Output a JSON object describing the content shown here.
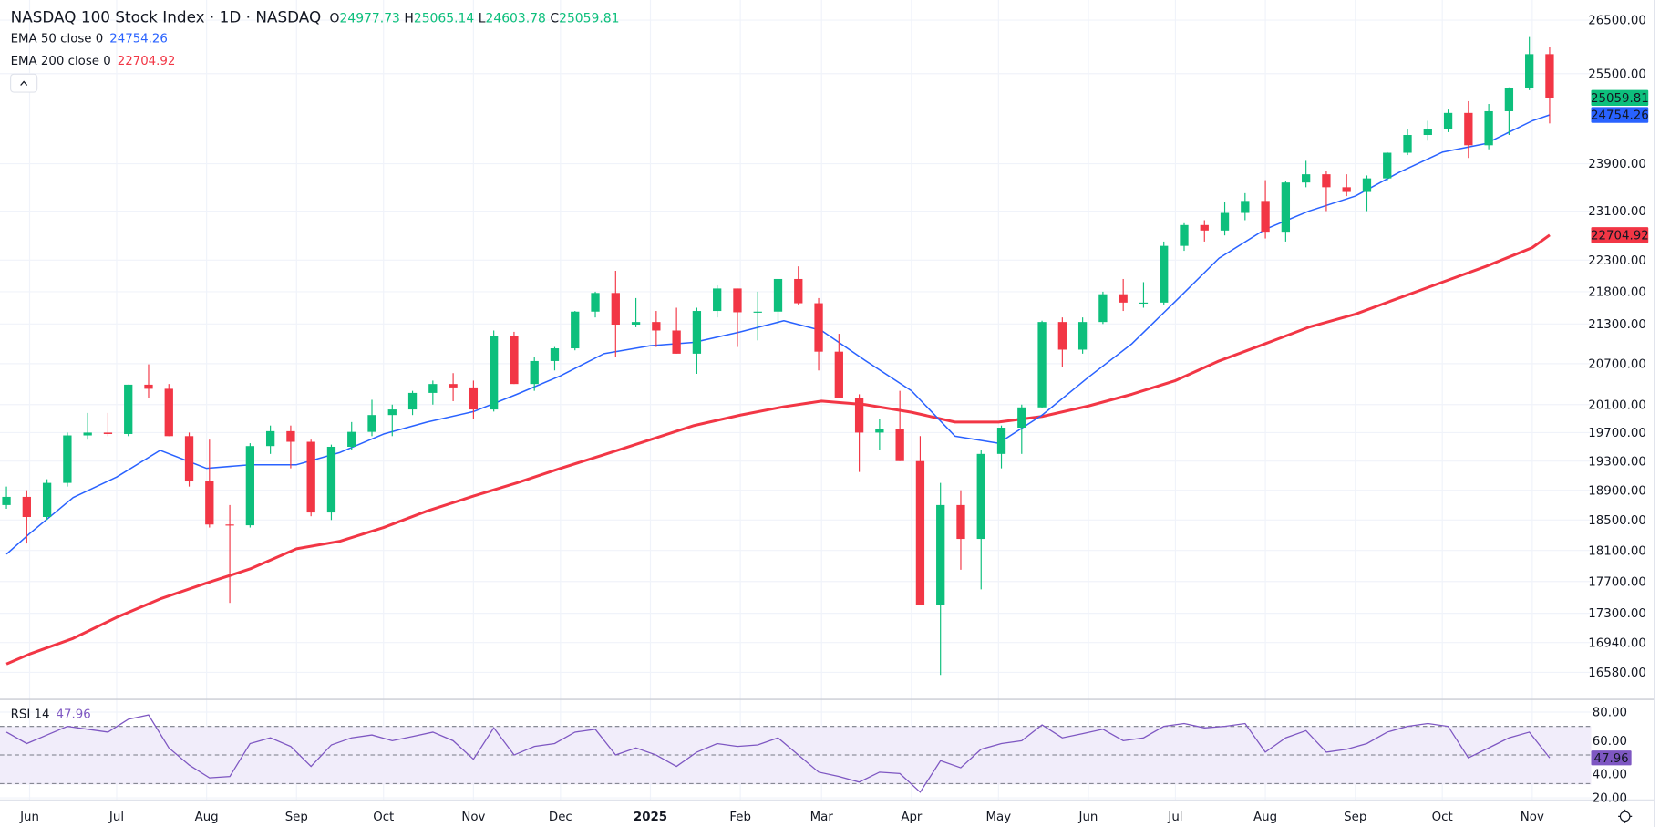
{
  "header": {
    "title": "NASDAQ 100 Stock Index · 1D · NASDAQ",
    "o_label": "O",
    "o_value": "24977.73",
    "h_label": "H",
    "h_value": "25065.14",
    "l_label": "L",
    "l_value": "24603.78",
    "c_label": "C",
    "c_value": "25059.81"
  },
  "legend": {
    "ema50_label": "EMA 50 close 0",
    "ema50_value": "24754.26",
    "ema200_label": "EMA 200 close 0",
    "ema200_value": "22704.92",
    "rsi_label": "RSI 14",
    "rsi_value": "47.96",
    "collapse_icon": "chevron-up-icon"
  },
  "badges": {
    "last_price": "25059.81",
    "ema50": "24754.26",
    "ema200": "22704.92",
    "rsi": "47.96"
  },
  "colors": {
    "up": "#0dbf7c",
    "down": "#f23645",
    "ema50": "#2962ff",
    "ema200": "#f23645",
    "rsi": "#7e57c2",
    "rsi_band": "#f1edfa"
  },
  "settings_icon": "gear-icon",
  "chart_data": {
    "type": "candlestick",
    "price_scale": "log",
    "grid": true,
    "ylim": [
      16450,
      26800
    ],
    "y_ticks": [
      26500,
      25500,
      23900,
      23100,
      22300,
      21800,
      21300,
      20700,
      20100,
      19700,
      19300,
      18900,
      18500,
      18100,
      17700,
      17300,
      16940,
      16580
    ],
    "x_ticks": [
      {
        "date": "2024-06-01",
        "label": "Jun"
      },
      {
        "date": "2024-07-01",
        "label": "Jul"
      },
      {
        "date": "2024-08-01",
        "label": "Aug"
      },
      {
        "date": "2024-09-01",
        "label": "Sep"
      },
      {
        "date": "2024-10-01",
        "label": "Oct"
      },
      {
        "date": "2024-11-01",
        "label": "Nov"
      },
      {
        "date": "2024-12-01",
        "label": "Dec"
      },
      {
        "date": "2025-01-01",
        "label": "2025"
      },
      {
        "date": "2025-02-01",
        "label": "Feb"
      },
      {
        "date": "2025-03-01",
        "label": "Mar"
      },
      {
        "date": "2025-04-01",
        "label": "Apr"
      },
      {
        "date": "2025-05-01",
        "label": "May"
      },
      {
        "date": "2025-06-01",
        "label": "Jun"
      },
      {
        "date": "2025-07-01",
        "label": "Jul"
      },
      {
        "date": "2025-08-01",
        "label": "Aug"
      },
      {
        "date": "2025-09-01",
        "label": "Sep"
      },
      {
        "date": "2025-10-01",
        "label": "Oct"
      },
      {
        "date": "2025-11-01",
        "label": "Nov"
      }
    ],
    "candles_columns": [
      "date",
      "open",
      "high",
      "low",
      "close"
    ],
    "candles": [
      [
        "2024-05-24",
        18700,
        18950,
        18650,
        18810
      ],
      [
        "2024-05-31",
        18810,
        18900,
        18190,
        18540
      ],
      [
        "2024-06-07",
        18540,
        19050,
        18500,
        19000
      ],
      [
        "2024-06-14",
        19000,
        19700,
        18950,
        19660
      ],
      [
        "2024-06-21",
        19660,
        19980,
        19600,
        19700
      ],
      [
        "2024-06-28",
        19700,
        19980,
        19650,
        19680
      ],
      [
        "2024-07-05",
        19680,
        20390,
        19650,
        20390
      ],
      [
        "2024-07-12",
        20390,
        20690,
        20200,
        20330
      ],
      [
        "2024-07-19",
        20330,
        20400,
        19650,
        19650
      ],
      [
        "2024-07-26",
        19650,
        19700,
        18950,
        19020
      ],
      [
        "2024-08-02",
        19020,
        19600,
        18400,
        18440
      ],
      [
        "2024-08-09",
        18440,
        18700,
        17430,
        18430
      ],
      [
        "2024-08-16",
        18430,
        19550,
        18400,
        19510
      ],
      [
        "2024-08-23",
        19510,
        19800,
        19400,
        19720
      ],
      [
        "2024-08-30",
        19720,
        19800,
        19200,
        19570
      ],
      [
        "2024-09-06",
        19570,
        19600,
        18550,
        18600
      ],
      [
        "2024-09-13",
        18600,
        19530,
        18500,
        19500
      ],
      [
        "2024-09-20",
        19500,
        19850,
        19450,
        19710
      ],
      [
        "2024-09-27",
        19710,
        20170,
        19650,
        19950
      ],
      [
        "2024-10-04",
        19950,
        20100,
        19650,
        20030
      ],
      [
        "2024-10-11",
        20030,
        20300,
        19950,
        20270
      ],
      [
        "2024-10-18",
        20270,
        20450,
        20100,
        20400
      ],
      [
        "2024-10-25",
        20400,
        20560,
        20150,
        20350
      ],
      [
        "2024-11-01",
        20350,
        20450,
        19900,
        20030
      ],
      [
        "2024-11-08",
        20030,
        21200,
        20000,
        21120
      ],
      [
        "2024-11-15",
        21120,
        21180,
        20400,
        20400
      ],
      [
        "2024-11-22",
        20400,
        20800,
        20300,
        20740
      ],
      [
        "2024-11-29",
        20740,
        20950,
        20600,
        20930
      ],
      [
        "2024-12-06",
        20930,
        21500,
        20900,
        21490
      ],
      [
        "2024-12-13",
        21490,
        21800,
        21400,
        21780
      ],
      [
        "2024-12-20",
        21780,
        22130,
        20800,
        21290
      ],
      [
        "2024-12-27",
        21290,
        21700,
        21250,
        21330
      ],
      [
        "2025-01-03",
        21330,
        21500,
        20950,
        21200
      ],
      [
        "2025-01-10",
        21200,
        21550,
        20850,
        20850
      ],
      [
        "2025-01-17",
        20850,
        21550,
        20550,
        21500
      ],
      [
        "2025-01-24",
        21500,
        21900,
        21400,
        21850
      ],
      [
        "2025-01-31",
        21850,
        21850,
        20950,
        21480
      ],
      [
        "2025-02-07",
        21480,
        21800,
        21050,
        21490
      ],
      [
        "2025-02-14",
        21490,
        22000,
        21300,
        22000
      ],
      [
        "2025-02-21",
        22000,
        22200,
        21600,
        21620
      ],
      [
        "2025-02-28",
        21620,
        21700,
        20600,
        20880
      ],
      [
        "2025-03-07",
        20880,
        21150,
        20200,
        20200
      ],
      [
        "2025-03-14",
        20200,
        20250,
        19150,
        19700
      ],
      [
        "2025-03-21",
        19700,
        19900,
        19450,
        19750
      ],
      [
        "2025-03-28",
        19750,
        20300,
        19300,
        19300
      ],
      [
        "2025-04-04",
        19300,
        19650,
        17400,
        17400
      ],
      [
        "2025-04-11",
        17400,
        19000,
        16550,
        18700
      ],
      [
        "2025-04-18",
        18700,
        18900,
        17850,
        18250
      ],
      [
        "2025-04-25",
        18250,
        19450,
        17600,
        19400
      ],
      [
        "2025-05-02",
        19400,
        19800,
        19200,
        19770
      ],
      [
        "2025-05-09",
        19770,
        20100,
        19400,
        20060
      ],
      [
        "2025-05-16",
        20060,
        21350,
        20050,
        21330
      ],
      [
        "2025-05-23",
        21330,
        21400,
        20650,
        20910
      ],
      [
        "2025-05-30",
        20910,
        21400,
        20850,
        21330
      ],
      [
        "2025-06-06",
        21330,
        21800,
        21300,
        21760
      ],
      [
        "2025-06-13",
        21760,
        22000,
        21500,
        21630
      ],
      [
        "2025-06-20",
        21630,
        21950,
        21550,
        21630
      ],
      [
        "2025-06-27",
        21630,
        22600,
        21600,
        22530
      ],
      [
        "2025-07-04",
        22530,
        22900,
        22450,
        22870
      ],
      [
        "2025-07-11",
        22870,
        22950,
        22600,
        22780
      ],
      [
        "2025-07-18",
        22780,
        23250,
        22700,
        23070
      ],
      [
        "2025-07-25",
        23070,
        23400,
        22950,
        23270
      ],
      [
        "2025-08-01",
        23270,
        23620,
        22650,
        22760
      ],
      [
        "2025-08-08",
        22760,
        23600,
        22600,
        23580
      ],
      [
        "2025-08-15",
        23580,
        23950,
        23500,
        23720
      ],
      [
        "2025-08-22",
        23720,
        23780,
        23100,
        23500
      ],
      [
        "2025-08-29",
        23500,
        23720,
        23350,
        23420
      ],
      [
        "2025-09-05",
        23420,
        23700,
        23100,
        23650
      ],
      [
        "2025-09-12",
        23650,
        24100,
        23600,
        24090
      ],
      [
        "2025-09-19",
        24090,
        24500,
        24050,
        24400
      ],
      [
        "2025-09-26",
        24400,
        24650,
        24300,
        24500
      ],
      [
        "2025-10-03",
        24500,
        24850,
        24450,
        24790
      ],
      [
        "2025-10-10",
        24790,
        25000,
        24000,
        24220
      ],
      [
        "2025-10-17",
        24220,
        24950,
        24150,
        24820
      ],
      [
        "2025-10-24",
        24820,
        25250,
        24400,
        25240
      ],
      [
        "2025-10-31",
        25240,
        26180,
        25200,
        25860
      ],
      [
        "2025-11-07",
        25860,
        26000,
        24603.78,
        25059.81
      ]
    ],
    "ema50": [
      [
        "2024-05-24",
        18050
      ],
      [
        "2024-06-01",
        18320
      ],
      [
        "2024-06-16",
        18800
      ],
      [
        "2024-07-01",
        19080
      ],
      [
        "2024-07-16",
        19450
      ],
      [
        "2024-08-01",
        19200
      ],
      [
        "2024-08-16",
        19250
      ],
      [
        "2024-09-01",
        19250
      ],
      [
        "2024-09-16",
        19420
      ],
      [
        "2024-10-01",
        19680
      ],
      [
        "2024-10-16",
        19850
      ],
      [
        "2024-11-01",
        20000
      ],
      [
        "2024-11-16",
        20250
      ],
      [
        "2024-12-01",
        20520
      ],
      [
        "2024-12-16",
        20850
      ],
      [
        "2025-01-01",
        20970
      ],
      [
        "2025-01-16",
        21020
      ],
      [
        "2025-02-01",
        21180
      ],
      [
        "2025-02-16",
        21350
      ],
      [
        "2025-03-01",
        21200
      ],
      [
        "2025-03-16",
        20750
      ],
      [
        "2025-04-01",
        20300
      ],
      [
        "2025-04-16",
        19650
      ],
      [
        "2025-05-01",
        19550
      ],
      [
        "2025-05-16",
        19950
      ],
      [
        "2025-06-01",
        20500
      ],
      [
        "2025-06-16",
        21000
      ],
      [
        "2025-07-01",
        21650
      ],
      [
        "2025-07-16",
        22330
      ],
      [
        "2025-08-01",
        22800
      ],
      [
        "2025-08-16",
        23100
      ],
      [
        "2025-09-01",
        23350
      ],
      [
        "2025-09-16",
        23750
      ],
      [
        "2025-10-01",
        24100
      ],
      [
        "2025-10-16",
        24250
      ],
      [
        "2025-11-01",
        24650
      ],
      [
        "2025-11-07",
        24754.26
      ]
    ],
    "ema200": [
      [
        "2024-05-24",
        16680
      ],
      [
        "2024-06-01",
        16800
      ],
      [
        "2024-06-16",
        16990
      ],
      [
        "2024-07-01",
        17250
      ],
      [
        "2024-07-16",
        17480
      ],
      [
        "2024-08-01",
        17680
      ],
      [
        "2024-08-16",
        17860
      ],
      [
        "2024-09-01",
        18120
      ],
      [
        "2024-09-16",
        18220
      ],
      [
        "2024-10-01",
        18400
      ],
      [
        "2024-10-16",
        18620
      ],
      [
        "2024-11-01",
        18820
      ],
      [
        "2024-11-16",
        19000
      ],
      [
        "2024-12-01",
        19200
      ],
      [
        "2024-12-16",
        19390
      ],
      [
        "2025-01-01",
        19600
      ],
      [
        "2025-01-16",
        19800
      ],
      [
        "2025-02-01",
        19950
      ],
      [
        "2025-02-16",
        20070
      ],
      [
        "2025-03-01",
        20150
      ],
      [
        "2025-03-16",
        20100
      ],
      [
        "2025-04-01",
        19990
      ],
      [
        "2025-04-16",
        19850
      ],
      [
        "2025-05-01",
        19850
      ],
      [
        "2025-05-16",
        19930
      ],
      [
        "2025-06-01",
        20080
      ],
      [
        "2025-06-16",
        20250
      ],
      [
        "2025-07-01",
        20450
      ],
      [
        "2025-07-16",
        20740
      ],
      [
        "2025-08-01",
        21000
      ],
      [
        "2025-08-16",
        21250
      ],
      [
        "2025-09-01",
        21450
      ],
      [
        "2025-09-16",
        21700
      ],
      [
        "2025-10-01",
        21950
      ],
      [
        "2025-10-16",
        22200
      ],
      [
        "2025-11-01",
        22500
      ],
      [
        "2025-11-07",
        22704.92
      ]
    ],
    "rsi": {
      "period": 14,
      "ylim": [
        20,
        80
      ],
      "y_ticks": [
        80,
        60,
        40,
        20
      ],
      "levels": [
        70,
        50,
        30
      ],
      "values": [
        66,
        58,
        64,
        70,
        68,
        66,
        75,
        78,
        55,
        43,
        34,
        35,
        58,
        62,
        56,
        42,
        57,
        62,
        64,
        60,
        63,
        66,
        60,
        47,
        69,
        50,
        56,
        58,
        66,
        68,
        50,
        55,
        50,
        42,
        52,
        58,
        56,
        57,
        62,
        50,
        38,
        35,
        31,
        38,
        37,
        24,
        46,
        41,
        54,
        58,
        60,
        71,
        62,
        65,
        68,
        60,
        62,
        70,
        72,
        69,
        70,
        72,
        52,
        62,
        67,
        52,
        54,
        58,
        66,
        70,
        72,
        70,
        48,
        55,
        62,
        66,
        47.96
      ]
    }
  }
}
